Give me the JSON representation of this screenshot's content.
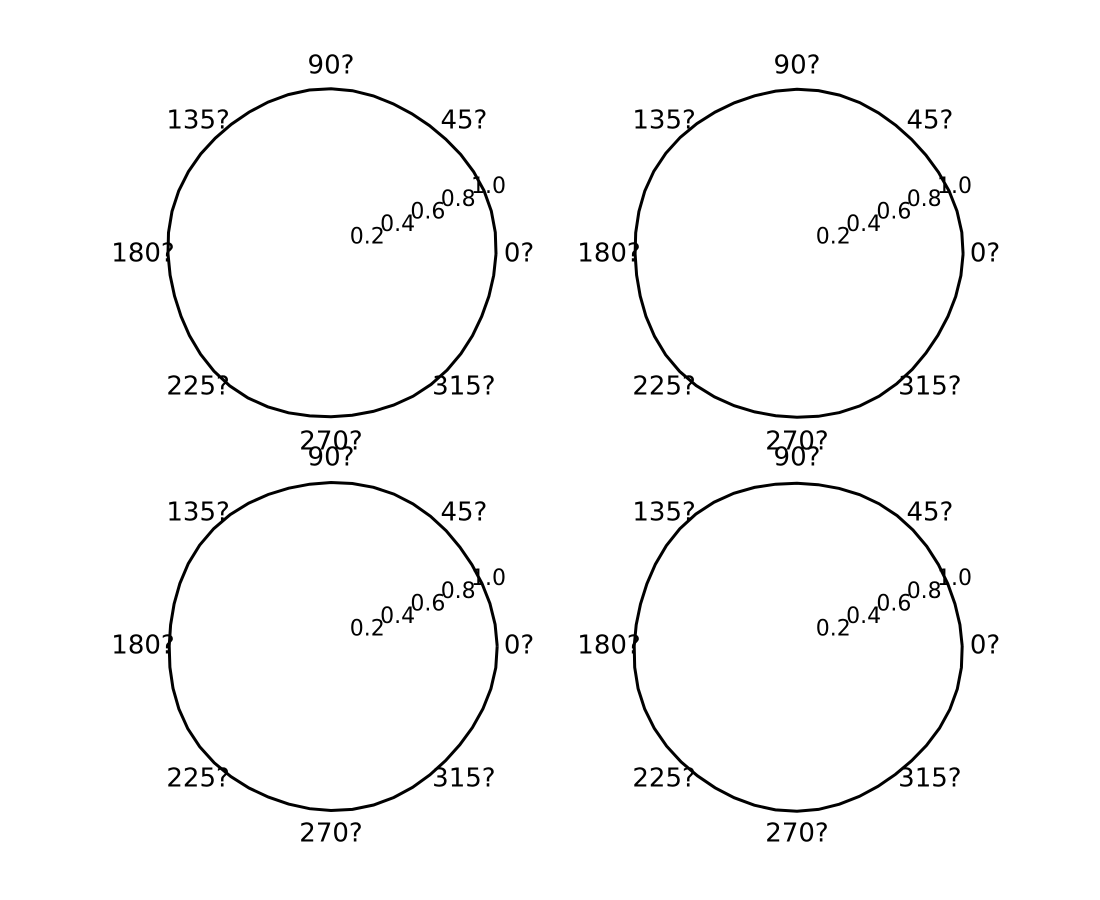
{
  "chart_data": {
    "type": "polar",
    "layout": "2x2 grid of empty polar axes",
    "style": "hand-drawn xkcd",
    "line_color": "#000000",
    "background": "#ffffff",
    "grid": false,
    "angle_tick_labels": [
      "0?",
      "45?",
      "90?",
      "135?",
      "180?",
      "225?",
      "270?",
      "315?"
    ],
    "angle_tick_values_deg": [
      0,
      45,
      90,
      135,
      180,
      225,
      270,
      315
    ],
    "radial_tick_labels": [
      "0.2",
      "0.4",
      "0.6",
      "0.8",
      "1.0"
    ],
    "radial_tick_values": [
      0.2,
      0.4,
      0.6,
      0.8,
      1.0
    ],
    "rlim": [
      0,
      1.0
    ],
    "series": [],
    "subplots": [
      {
        "id": "top-left"
      },
      {
        "id": "top-right"
      },
      {
        "id": "bottom-left"
      },
      {
        "id": "bottom-right"
      }
    ]
  }
}
